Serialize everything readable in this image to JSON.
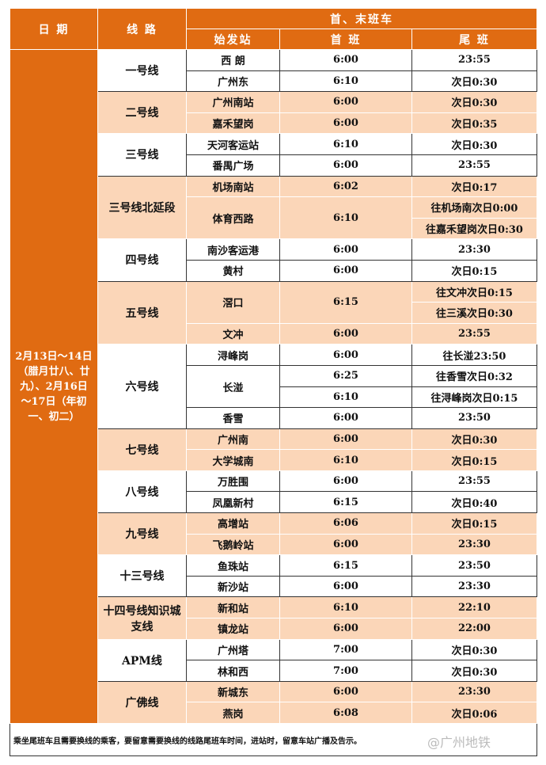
{
  "header": {
    "date": "日 期",
    "line": "线 路",
    "group": "首、末班车",
    "station": "始发站",
    "first": "首 班",
    "last": "尾 班"
  },
  "date_text": "2月13日～14日（腊月廿八、廿九）、2月16日～17日（年初一、初二）",
  "colors": {
    "header": "#e06b12",
    "shade": "#fbd6b8"
  },
  "lines": [
    {
      "name": "一号线",
      "stations": [
        {
          "name": "西 朗",
          "first": "6:00",
          "last": [
            "23:55"
          ]
        },
        {
          "name": "广州东",
          "first": "6:10",
          "last": [
            "次日0:30"
          ]
        }
      ]
    },
    {
      "name": "二号线",
      "stations": [
        {
          "name": "广州南站",
          "first": "6:00",
          "last": [
            "次日0:30"
          ]
        },
        {
          "name": "嘉禾望岗",
          "first": "6:00",
          "last": [
            "次日0:35"
          ]
        }
      ]
    },
    {
      "name": "三号线",
      "stations": [
        {
          "name": "天河客运站",
          "first": "6:10",
          "last": [
            "次日0:30"
          ]
        },
        {
          "name": "番禺广场",
          "first": "6:00",
          "last": [
            "23:55"
          ]
        }
      ]
    },
    {
      "name": "三号线北延段",
      "stations": [
        {
          "name": "机场南站",
          "first": "6:02",
          "last": [
            "次日0:17"
          ]
        },
        {
          "name": "体育西路",
          "first": "6:10",
          "last": [
            "往机场南次日0:00",
            "往嘉禾望岗次日0:30"
          ]
        }
      ]
    },
    {
      "name": "四号线",
      "stations": [
        {
          "name": "南沙客运港",
          "first": "6:00",
          "last": [
            "23:30"
          ]
        },
        {
          "name": "黄村",
          "first": "6:00",
          "last": [
            "次日0:15"
          ]
        }
      ]
    },
    {
      "name": "五号线",
      "stations": [
        {
          "name": "滘口",
          "first": "6:15",
          "last": [
            "往文冲次日0:15",
            "往三溪次日0:30"
          ]
        },
        {
          "name": "文冲",
          "first": "6:00",
          "last": [
            "23:55"
          ]
        }
      ]
    },
    {
      "name": "六号线",
      "stations": [
        {
          "name": "浔峰岗",
          "first": "6:00",
          "last": [
            "往长湴23:50"
          ]
        },
        {
          "name": "长湴",
          "first": [
            "6:25",
            "6:10"
          ],
          "last": [
            "往香雪次日0:32",
            "往浔峰岗次日0:15"
          ]
        },
        {
          "name": "香雪",
          "first": "6:00",
          "last": [
            "23:50"
          ]
        }
      ]
    },
    {
      "name": "七号线",
      "stations": [
        {
          "name": "广州南",
          "first": "6:00",
          "last": [
            "次日0:30"
          ]
        },
        {
          "name": "大学城南",
          "first": "6:10",
          "last": [
            "次日0:15"
          ]
        }
      ]
    },
    {
      "name": "八号线",
      "stations": [
        {
          "name": "万胜围",
          "first": "6:00",
          "last": [
            "23:55"
          ]
        },
        {
          "name": "凤凰新村",
          "first": "6:15",
          "last": [
            "次日0:40"
          ]
        }
      ]
    },
    {
      "name": "九号线",
      "stations": [
        {
          "name": "高增站",
          "first": "6:06",
          "last": [
            "次日0:15"
          ]
        },
        {
          "name": "飞鹅岭站",
          "first": "6:00",
          "last": [
            "23:30"
          ]
        }
      ]
    },
    {
      "name": "十三号线",
      "stations": [
        {
          "name": "鱼珠站",
          "first": "6:15",
          "last": [
            "23:50"
          ]
        },
        {
          "name": "新沙站",
          "first": "6:00",
          "last": [
            "23:30"
          ]
        }
      ]
    },
    {
      "name": "十四号线知识城支线",
      "stations": [
        {
          "name": "新和站",
          "first": "6:10",
          "last": [
            "22:10"
          ]
        },
        {
          "name": "镇龙站",
          "first": "6:00",
          "last": [
            "22:00"
          ]
        }
      ]
    },
    {
      "name": "APM线",
      "stations": [
        {
          "name": "广州塔",
          "first": "7:00",
          "last": [
            "次日0:30"
          ]
        },
        {
          "name": "林和西",
          "first": "7:00",
          "last": [
            "次日0:30"
          ]
        }
      ]
    },
    {
      "name": "广佛线",
      "stations": [
        {
          "name": "新城东",
          "first": "6:00",
          "last": [
            "23:30"
          ]
        },
        {
          "name": "燕岗",
          "first": "6:08",
          "last": [
            "次日0:06"
          ]
        }
      ]
    }
  ],
  "footnote": "乘坐尾班车且需要换线的乘客，要留意需要换线的线路尾班车时间，进站时，留意车站广播及告示。",
  "watermark": "@广州地铁"
}
